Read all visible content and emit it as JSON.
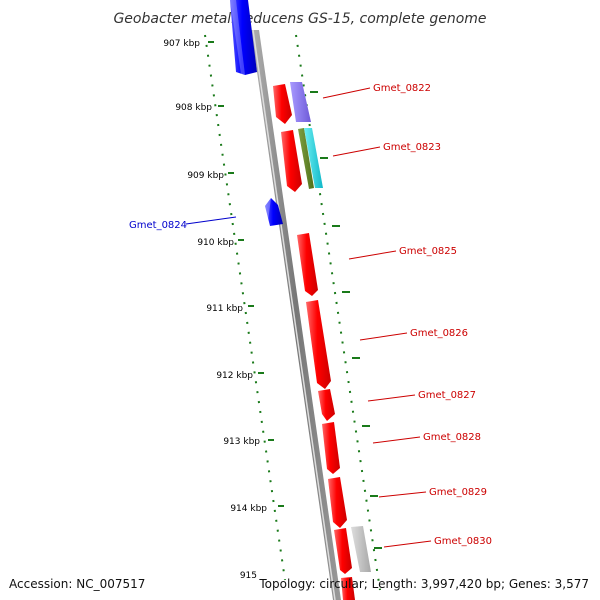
{
  "title": "Geobacter metallireducens GS-15, complete genome",
  "footer": {
    "accession": "Accession: NC_007517",
    "summary": "Topology: circular; Length: 3,997,420 bp; Genes: 3,577"
  },
  "kbp_labels": [
    "907 kbp",
    "908 kbp",
    "909 kbp",
    "910 kbp",
    "911 kbp",
    "912 kbp",
    "913 kbp",
    "914 kbp",
    "915"
  ],
  "gene_labels": [
    {
      "text": "Gmet_0822",
      "color": "#cc0000"
    },
    {
      "text": "Gmet_0823",
      "color": "#cc0000"
    },
    {
      "text": "Gmet_0824",
      "color": "#0000cc"
    },
    {
      "text": "Gmet_0825",
      "color": "#cc0000"
    },
    {
      "text": "Gmet_0826",
      "color": "#cc0000"
    },
    {
      "text": "Gmet_0827",
      "color": "#cc0000"
    },
    {
      "text": "Gmet_0828",
      "color": "#cc0000"
    },
    {
      "text": "Gmet_0829",
      "color": "#cc0000"
    },
    {
      "text": "Gmet_0830",
      "color": "#cc0000"
    }
  ],
  "colors": {
    "forward": "#ff0000",
    "reverse": "#0000ff",
    "backbone": "#888888",
    "ruler": "#1a7a1a"
  }
}
